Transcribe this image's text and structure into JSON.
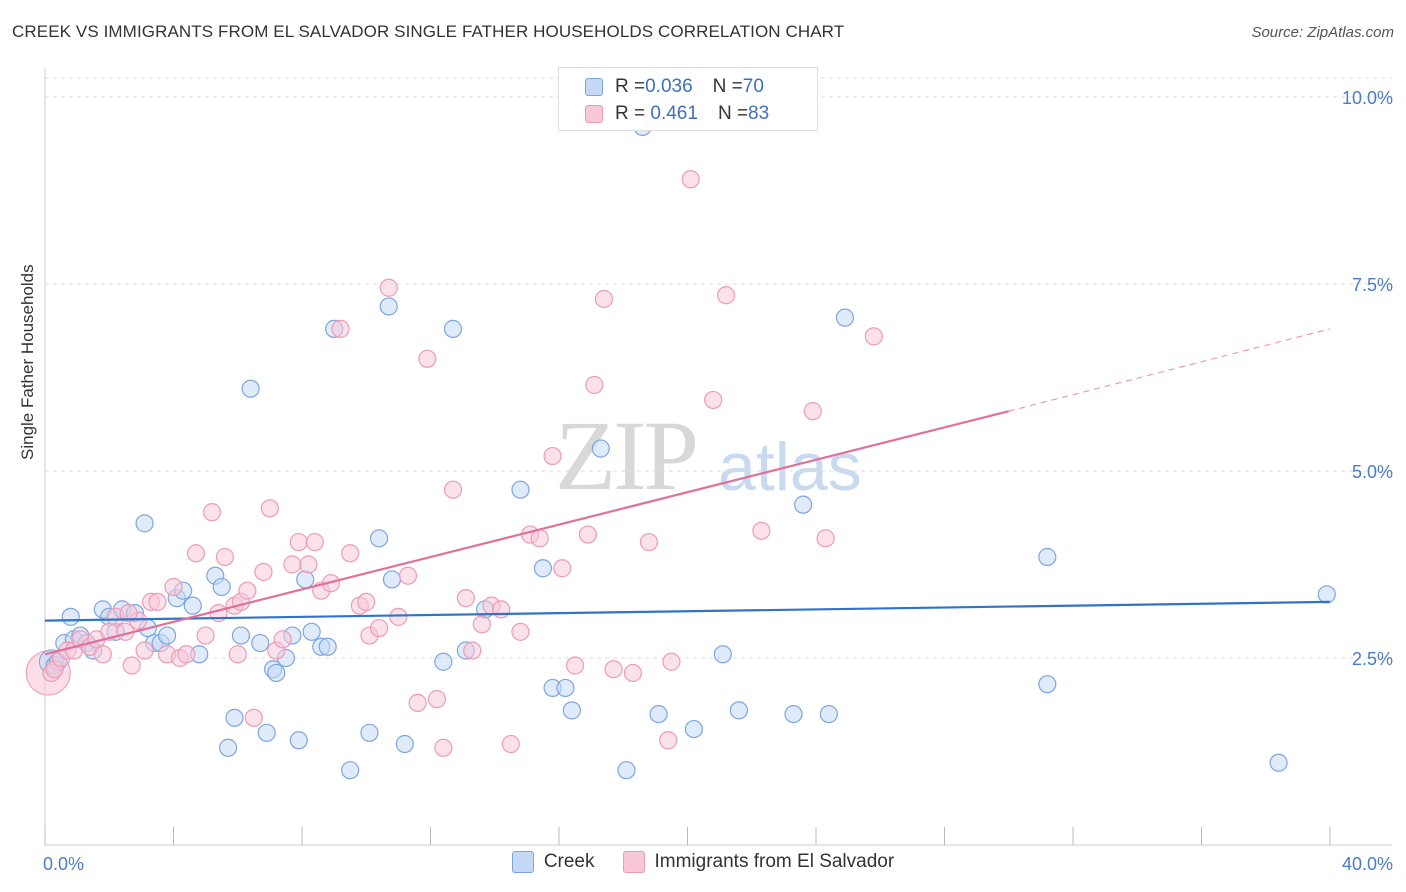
{
  "header": {
    "title": "CREEK VS IMMIGRANTS FROM EL SALVADOR SINGLE FATHER HOUSEHOLDS CORRELATION CHART",
    "source": "Source: ZipAtlas.com"
  },
  "watermark": {
    "zip": "ZIP",
    "atlas": "atlas"
  },
  "legend_top": [
    {
      "r_label": "R = ",
      "r_value": "0.036",
      "n_label": "N = ",
      "n_value": "70"
    },
    {
      "r_label": "R = ",
      "r_value": " 0.461",
      "n_label": "N = ",
      "n_value": "83"
    }
  ],
  "legend_bottom": [
    "Creek",
    "Immigrants from El Salvador"
  ],
  "colors": {
    "creek_fill": "#c5d8f5",
    "creek_stroke": "#7da6e0",
    "creek_line": "#2f74c8",
    "salv_fill": "#f8c8d8",
    "salv_stroke": "#ee9bb6",
    "salv_line": "#e0709a",
    "grid": "#dddddd",
    "axis_text": "#4a7cc9"
  },
  "chart_data": {
    "type": "scatter",
    "title": "CREEK VS IMMIGRANTS FROM EL SALVADOR SINGLE FATHER HOUSEHOLDS CORRELATION CHART",
    "xlabel": "",
    "ylabel": "Single Father Households",
    "xlim": [
      0,
      40
    ],
    "ylim": [
      0,
      10.5
    ],
    "x_tick_labels": [
      "0.0%",
      "40.0%"
    ],
    "y_ticks": [
      2.5,
      5.0,
      7.5,
      10.0
    ],
    "y_tick_labels": [
      "2.5%",
      "5.0%",
      "7.5%",
      "10.0%"
    ],
    "grid": true,
    "series": [
      {
        "name": "Creek",
        "r": 0.036,
        "n": 70,
        "trend": [
          [
            0,
            3.0
          ],
          [
            40,
            3.25
          ]
        ],
        "points": [
          [
            0.3,
            2.4
          ],
          [
            0.4,
            2.45
          ],
          [
            0.6,
            2.7
          ],
          [
            0.8,
            3.05
          ],
          [
            0.9,
            2.75
          ],
          [
            1.1,
            2.8
          ],
          [
            1.3,
            2.7
          ],
          [
            1.5,
            2.6
          ],
          [
            1.8,
            3.15
          ],
          [
            2.0,
            3.05
          ],
          [
            2.2,
            2.85
          ],
          [
            2.4,
            3.15
          ],
          [
            2.8,
            3.1
          ],
          [
            3.2,
            2.9
          ],
          [
            3.4,
            2.7
          ],
          [
            3.6,
            2.7
          ],
          [
            3.8,
            2.8
          ],
          [
            3.1,
            4.3
          ],
          [
            4.1,
            3.3
          ],
          [
            4.3,
            3.4
          ],
          [
            4.6,
            3.2
          ],
          [
            4.8,
            2.55
          ],
          [
            5.3,
            3.6
          ],
          [
            5.5,
            3.45
          ],
          [
            5.7,
            1.3
          ],
          [
            5.9,
            1.7
          ],
          [
            6.1,
            2.8
          ],
          [
            6.4,
            6.1
          ],
          [
            6.7,
            2.7
          ],
          [
            6.9,
            1.5
          ],
          [
            7.1,
            2.35
          ],
          [
            7.2,
            2.3
          ],
          [
            7.5,
            2.5
          ],
          [
            7.7,
            2.8
          ],
          [
            7.9,
            1.4
          ],
          [
            8.1,
            3.55
          ],
          [
            8.3,
            2.85
          ],
          [
            8.6,
            2.65
          ],
          [
            8.8,
            2.65
          ],
          [
            9.0,
            6.9
          ],
          [
            9.5,
            1.0
          ],
          [
            10.1,
            1.5
          ],
          [
            10.4,
            4.1
          ],
          [
            10.7,
            7.2
          ],
          [
            10.8,
            3.55
          ],
          [
            11.2,
            1.35
          ],
          [
            12.4,
            2.45
          ],
          [
            12.7,
            6.9
          ],
          [
            13.1,
            2.6
          ],
          [
            13.7,
            3.15
          ],
          [
            14.8,
            4.75
          ],
          [
            15.5,
            3.7
          ],
          [
            15.8,
            2.1
          ],
          [
            16.2,
            2.1
          ],
          [
            16.4,
            1.8
          ],
          [
            17.3,
            5.3
          ],
          [
            18.1,
            1.0
          ],
          [
            18.6,
            9.6
          ],
          [
            19.1,
            1.75
          ],
          [
            20.2,
            1.55
          ],
          [
            21.1,
            2.55
          ],
          [
            21.6,
            1.8
          ],
          [
            23.3,
            1.75
          ],
          [
            23.6,
            4.55
          ],
          [
            24.4,
            1.75
          ],
          [
            24.9,
            7.05
          ],
          [
            31.2,
            3.85
          ],
          [
            31.2,
            2.15
          ],
          [
            38.4,
            1.1
          ],
          [
            39.9,
            3.35
          ]
        ]
      },
      {
        "name": "Immigrants from El Salvador",
        "r": 0.461,
        "n": 83,
        "trend": [
          [
            0,
            2.55
          ],
          [
            30,
            5.8
          ]
        ],
        "trend_dashed": [
          [
            30,
            5.8
          ],
          [
            40,
            6.9
          ]
        ],
        "points": [
          [
            0.2,
            2.3
          ],
          [
            0.3,
            2.35
          ],
          [
            0.5,
            2.5
          ],
          [
            0.7,
            2.6
          ],
          [
            0.9,
            2.6
          ],
          [
            1.1,
            2.75
          ],
          [
            1.4,
            2.65
          ],
          [
            1.6,
            2.75
          ],
          [
            1.8,
            2.55
          ],
          [
            2.0,
            2.85
          ],
          [
            2.2,
            3.05
          ],
          [
            2.5,
            2.85
          ],
          [
            2.7,
            2.4
          ],
          [
            2.9,
            3.0
          ],
          [
            3.1,
            2.6
          ],
          [
            3.3,
            3.25
          ],
          [
            3.5,
            3.25
          ],
          [
            3.8,
            2.55
          ],
          [
            4.0,
            3.45
          ],
          [
            4.2,
            2.5
          ],
          [
            4.4,
            2.55
          ],
          [
            4.7,
            3.9
          ],
          [
            5.0,
            2.8
          ],
          [
            5.2,
            4.45
          ],
          [
            5.4,
            3.1
          ],
          [
            5.6,
            3.85
          ],
          [
            5.9,
            3.2
          ],
          [
            6.1,
            3.25
          ],
          [
            6.3,
            3.4
          ],
          [
            6.5,
            1.7
          ],
          [
            6.8,
            3.65
          ],
          [
            7.0,
            4.5
          ],
          [
            7.2,
            2.6
          ],
          [
            7.4,
            2.75
          ],
          [
            7.7,
            3.75
          ],
          [
            7.9,
            4.05
          ],
          [
            8.2,
            3.75
          ],
          [
            8.4,
            4.05
          ],
          [
            8.6,
            3.4
          ],
          [
            8.9,
            3.5
          ],
          [
            9.2,
            6.9
          ],
          [
            9.5,
            3.9
          ],
          [
            9.8,
            3.2
          ],
          [
            10.1,
            2.8
          ],
          [
            10.4,
            2.9
          ],
          [
            10.7,
            7.45
          ],
          [
            11.0,
            3.05
          ],
          [
            11.3,
            3.6
          ],
          [
            11.6,
            1.9
          ],
          [
            11.9,
            6.5
          ],
          [
            12.2,
            1.95
          ],
          [
            12.4,
            1.3
          ],
          [
            12.7,
            4.75
          ],
          [
            13.1,
            3.3
          ],
          [
            13.3,
            2.6
          ],
          [
            13.6,
            2.95
          ],
          [
            13.9,
            3.2
          ],
          [
            14.2,
            3.15
          ],
          [
            14.5,
            1.35
          ],
          [
            14.8,
            2.85
          ],
          [
            15.1,
            4.15
          ],
          [
            15.4,
            4.1
          ],
          [
            15.8,
            5.2
          ],
          [
            16.1,
            3.7
          ],
          [
            16.5,
            2.4
          ],
          [
            16.9,
            4.15
          ],
          [
            17.1,
            6.15
          ],
          [
            17.4,
            7.3
          ],
          [
            17.7,
            2.35
          ],
          [
            18.3,
            2.3
          ],
          [
            18.8,
            4.05
          ],
          [
            19.4,
            1.4
          ],
          [
            19.5,
            2.45
          ],
          [
            20.1,
            8.9
          ],
          [
            20.8,
            5.95
          ],
          [
            21.2,
            7.35
          ],
          [
            22.3,
            4.2
          ],
          [
            23.9,
            5.8
          ],
          [
            24.3,
            4.1
          ],
          [
            25.8,
            6.8
          ],
          [
            10.0,
            3.25
          ],
          [
            6.0,
            2.55
          ],
          [
            2.6,
            3.1
          ]
        ]
      }
    ]
  }
}
